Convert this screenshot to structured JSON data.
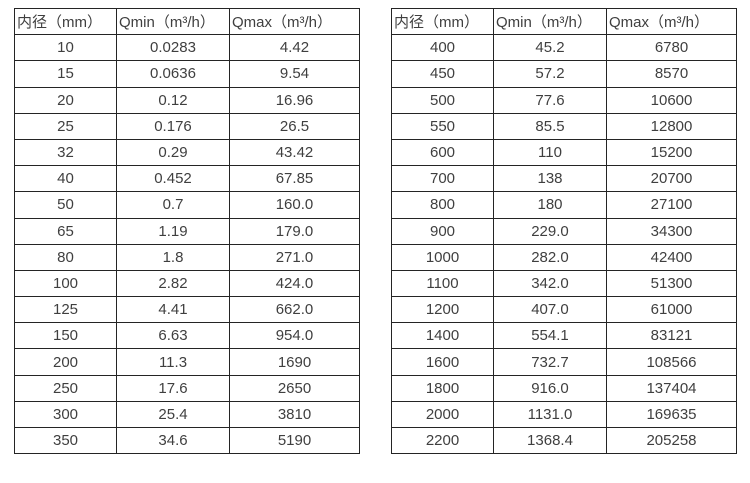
{
  "page": {
    "background_color": "#ffffff",
    "text_color": "#3f3f3f",
    "border_color": "#242424"
  },
  "tables": [
    {
      "name": "flow-spec-table-small-diameters",
      "headers": [
        "内径（mm）",
        "Qmin（m³/h）",
        "Qmax（m³/h）"
      ],
      "rows": [
        [
          "10",
          "0.0283",
          "4.42"
        ],
        [
          "15",
          "0.0636",
          "9.54"
        ],
        [
          "20",
          "0.12",
          "16.96"
        ],
        [
          "25",
          "0.176",
          "26.5"
        ],
        [
          "32",
          "0.29",
          "43.42"
        ],
        [
          "40",
          "0.452",
          "67.85"
        ],
        [
          "50",
          "0.7",
          "160.0"
        ],
        [
          "65",
          "1.19",
          "179.0"
        ],
        [
          "80",
          "1.8",
          "271.0"
        ],
        [
          "100",
          "2.82",
          "424.0"
        ],
        [
          "125",
          "4.41",
          "662.0"
        ],
        [
          "150",
          "6.63",
          "954.0"
        ],
        [
          "200",
          "11.3",
          "1690"
        ],
        [
          "250",
          "17.6",
          "2650"
        ],
        [
          "300",
          "25.4",
          "3810"
        ],
        [
          "350",
          "34.6",
          "5190"
        ]
      ]
    },
    {
      "name": "flow-spec-table-large-diameters",
      "headers": [
        "内径（mm）",
        "Qmin（m³/h）",
        "Qmax（m³/h）"
      ],
      "rows": [
        [
          "400",
          "45.2",
          "6780"
        ],
        [
          "450",
          "57.2",
          "8570"
        ],
        [
          "500",
          "77.6",
          "10600"
        ],
        [
          "550",
          "85.5",
          "12800"
        ],
        [
          "600",
          "110",
          "15200"
        ],
        [
          "700",
          "138",
          "20700"
        ],
        [
          "800",
          "180",
          "27100"
        ],
        [
          "900",
          "229.0",
          "34300"
        ],
        [
          "1000",
          "282.0",
          "42400"
        ],
        [
          "1100",
          "342.0",
          "51300"
        ],
        [
          "1200",
          "407.0",
          "61000"
        ],
        [
          "1400",
          "554.1",
          "83121"
        ],
        [
          "1600",
          "732.7",
          "108566"
        ],
        [
          "1800",
          "916.0",
          "137404"
        ],
        [
          "2000",
          "1131.0",
          "169635"
        ],
        [
          "2200",
          "1368.4",
          "205258"
        ]
      ]
    }
  ]
}
